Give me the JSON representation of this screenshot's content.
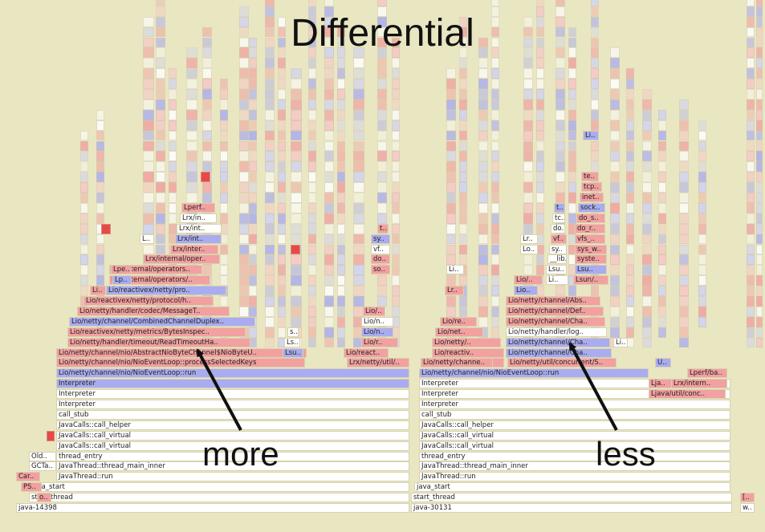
{
  "title": "Differential",
  "labels": {
    "more": "more",
    "less": "less"
  },
  "colors": {
    "background": "#e9e6c2",
    "more": "#f2a0a0",
    "more_strong": "#e84848",
    "less": "#a9acf0",
    "neutral": "#ffffff"
  },
  "left_graph": {
    "frames": [
      [
        "java-14398",
        "w"
      ],
      [
        "start_thread",
        "w"
      ],
      [
        "java_start",
        "w"
      ],
      [
        "JavaThread::run",
        "w"
      ],
      [
        "JavaThread::thread_main_inner",
        "w"
      ],
      [
        "thread_entry",
        "w"
      ],
      [
        "JavaCalls::call_virtual",
        "w"
      ],
      [
        "JavaCalls::call_virtual",
        "w"
      ],
      [
        "JavaCalls::call_helper",
        "w"
      ],
      [
        "call_stub",
        "w"
      ],
      [
        "Interpreter",
        "w"
      ],
      [
        "Interpreter",
        "w"
      ],
      [
        "Interpreter",
        "b"
      ],
      [
        "Lio/netty/channel/nio/NioEventLoop::run",
        "b"
      ],
      [
        "Lio/netty/channel/nio/NioEventLoop::processSelectedKeys",
        "r"
      ],
      [
        "Lio/netty/channel/nio/AbstractNioByteChannel$NioByteU..",
        "r"
      ],
      [
        "Lio/netty/handler/timeout/ReadTimeoutHa..",
        "r"
      ],
      [
        "Lio/reactivex/netty/metrics/BytesInspec..",
        "r"
      ],
      [
        "Lio/netty/channel/CombinedChannelDuplex..",
        "b"
      ],
      [
        "Lio/netty/handler/codec/MessageT..",
        "r"
      ],
      [
        "Lio/reactivex/netty/protocol/h..",
        "r"
      ],
      [
        "Lio/reactivex/netty/pro..",
        "b"
      ],
      [
        "Lrx/internal/operators/..",
        "r"
      ],
      [
        "Lrx/internal/operators..",
        "r"
      ],
      [
        "Lrx/internal/oper..",
        "r"
      ],
      [
        "Lrx/inter..",
        "r"
      ],
      [
        "Lrx/int..",
        "b"
      ],
      [
        "Lrx/int..",
        "w"
      ],
      [
        "Lrx/in..",
        "w"
      ],
      [
        "Lperf..",
        "r"
      ]
    ],
    "side_frames": [
      [
        "Old..",
        "w"
      ],
      [
        "GCTa..",
        "w"
      ],
      [
        "Car..",
        "r"
      ],
      [
        "PS..",
        "r"
      ],
      [
        "o..",
        "r"
      ],
      [
        "L..",
        "w"
      ],
      [
        "Lpe..",
        "r"
      ],
      [
        "Lp..",
        "b"
      ],
      [
        "Li..",
        "r"
      ],
      [
        "Lrx/netty/util/..",
        "r"
      ],
      [
        "Lio/react..",
        "r"
      ],
      [
        "Lio/r..",
        "r"
      ],
      [
        "Lio/n..",
        "b"
      ],
      [
        "Lio/n..",
        "w"
      ],
      [
        "Lio/..",
        "r"
      ],
      [
        "Lsu..",
        "b"
      ],
      [
        "Ls..",
        "w"
      ],
      [
        "s..",
        "w"
      ],
      [
        "so..",
        "r"
      ],
      [
        "do..",
        "r"
      ],
      [
        "vf..",
        "w"
      ],
      [
        "sy..",
        "b"
      ],
      [
        "t..",
        "r"
      ]
    ]
  },
  "right_graph": {
    "frames": [
      [
        "java-30131",
        "w"
      ],
      [
        "start_thread",
        "w"
      ],
      [
        "java_start",
        "w"
      ],
      [
        "JavaThread::run",
        "w"
      ],
      [
        "JavaThread::thread_main_inner",
        "w"
      ],
      [
        "thread_entry",
        "w"
      ],
      [
        "JavaCalls::call_virtual",
        "w"
      ],
      [
        "JavaCalls::call_virtual",
        "w"
      ],
      [
        "JavaCalls::call_helper",
        "w"
      ],
      [
        "call_stub",
        "w"
      ],
      [
        "Interpreter",
        "w"
      ],
      [
        "Interpreter",
        "w"
      ],
      [
        "Interpreter",
        "w"
      ],
      [
        "Lio/netty/channel/nio/NioEventLoop::run",
        "b"
      ],
      [
        "Lio/netty/util/concurrent/S..",
        "r"
      ],
      [
        "Lio/netty/channel/Cha..",
        "b"
      ],
      [
        "Lio/netty/channel/Cha..",
        "b"
      ],
      [
        "Lio/netty/handler/log..",
        "w"
      ],
      [
        "Lio/netty/channel/Cha..",
        "r"
      ],
      [
        "Lio/netty/channel/Def..",
        "r"
      ],
      [
        "Lio/netty/channel/Abs..",
        "r"
      ]
    ],
    "side_frames": [
      [
        "Lio/netty/channe..",
        "r"
      ],
      [
        "Lio/reactiv..",
        "r"
      ],
      [
        "Lio/netty/..",
        "r"
      ],
      [
        "Lio/net..",
        "r"
      ],
      [
        "Lio/re..",
        "r"
      ],
      [
        "Lr..",
        "r"
      ],
      [
        "Li..",
        "w"
      ],
      [
        "Lio/..",
        "r"
      ],
      [
        "Lio..",
        "b"
      ],
      [
        "Lr..",
        "w"
      ],
      [
        "Lo..",
        "w"
      ],
      [
        "Lsun/..",
        "r"
      ],
      [
        "Lsu..",
        "b"
      ],
      [
        "syste..",
        "r"
      ],
      [
        "sys_w..",
        "r"
      ],
      [
        "vfs_..",
        "r"
      ],
      [
        "do_r..",
        "r"
      ],
      [
        "do_s..",
        "r"
      ],
      [
        "sock..",
        "b"
      ],
      [
        "inet..",
        "r"
      ],
      [
        "tcp..",
        "r"
      ],
      [
        "te..",
        "r"
      ],
      [
        "Li..",
        "b"
      ],
      [
        "Li..",
        "w"
      ],
      [
        "Lsu..",
        "w"
      ],
      [
        "__lib..",
        "w"
      ],
      [
        "sy..",
        "w"
      ],
      [
        "vf..",
        "r"
      ],
      [
        "do..",
        "w"
      ],
      [
        "tc..",
        "w"
      ],
      [
        "t..",
        "b"
      ],
      [
        "Lio/netty/channe..",
        "r"
      ],
      [
        "Lja..",
        "r"
      ],
      [
        "Ljava/util/conc..",
        "r"
      ],
      [
        "Lrx/intern..",
        "r"
      ],
      [
        "Lperf/ba..",
        "r"
      ],
      [
        "U..",
        "b"
      ],
      [
        "Li..",
        "w"
      ]
    ]
  },
  "edge_frames": [
    [
      "[..",
      "r"
    ],
    [
      "w..",
      "w"
    ]
  ]
}
